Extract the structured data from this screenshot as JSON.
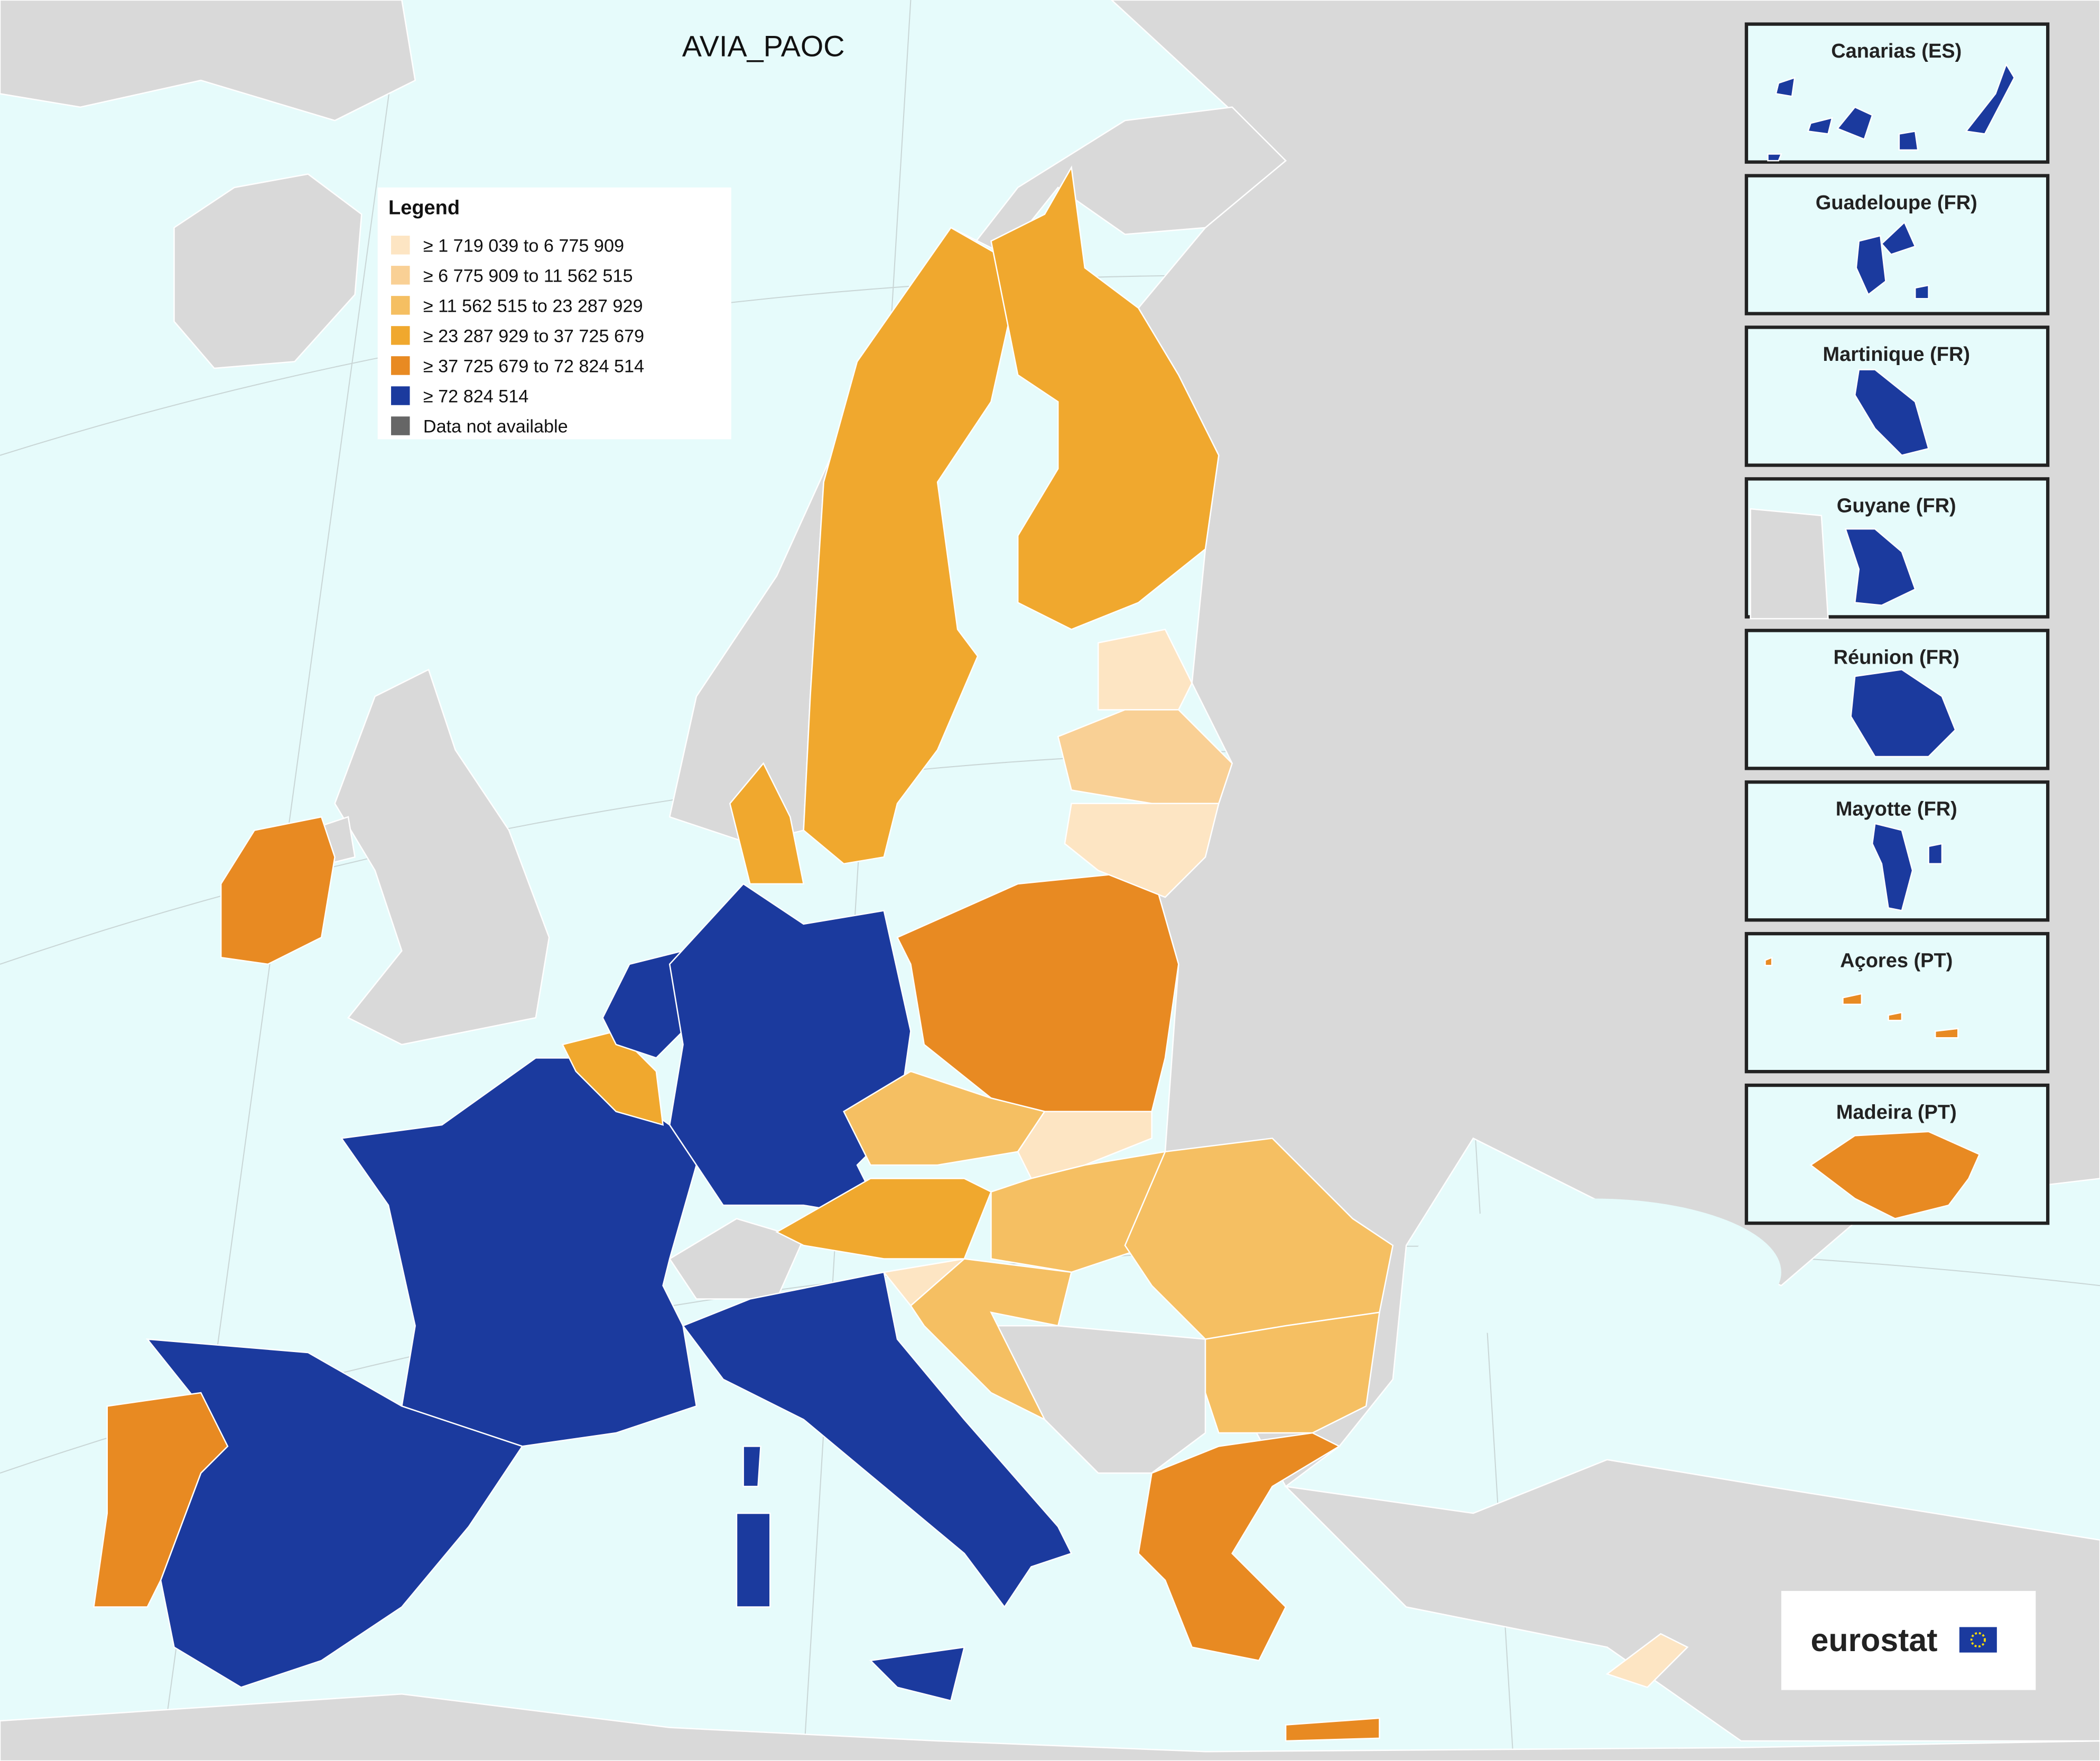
{
  "title": "AVIA_PAOC",
  "legend": {
    "title": "Legend",
    "items": [
      {
        "label": "≥ 1 719 039 to 6 775 909",
        "color": "#fde5c3"
      },
      {
        "label": "≥ 6 775 909 to 11 562 515",
        "color": "#f9d095"
      },
      {
        "label": "≥ 11 562 515 to 23 287 929",
        "color": "#f5bf62"
      },
      {
        "label": "≥ 23 287 929 to 37 725 679",
        "color": "#f0a82e"
      },
      {
        "label": "≥ 37 725 679 to 72 824 514",
        "color": "#e88a22"
      },
      {
        "label": "≥ 72 824 514",
        "color": "#1b3a9e"
      },
      {
        "label": "Data not available",
        "color": "#666666"
      }
    ]
  },
  "insets": [
    "Canarias (ES)",
    "Guadeloupe (FR)",
    "Martinique (FR)",
    "Guyane (FR)",
    "Réunion (FR)",
    "Mayotte (FR)",
    "Açores (PT)",
    "Madeira (PT)"
  ],
  "logo": "eurostat"
}
